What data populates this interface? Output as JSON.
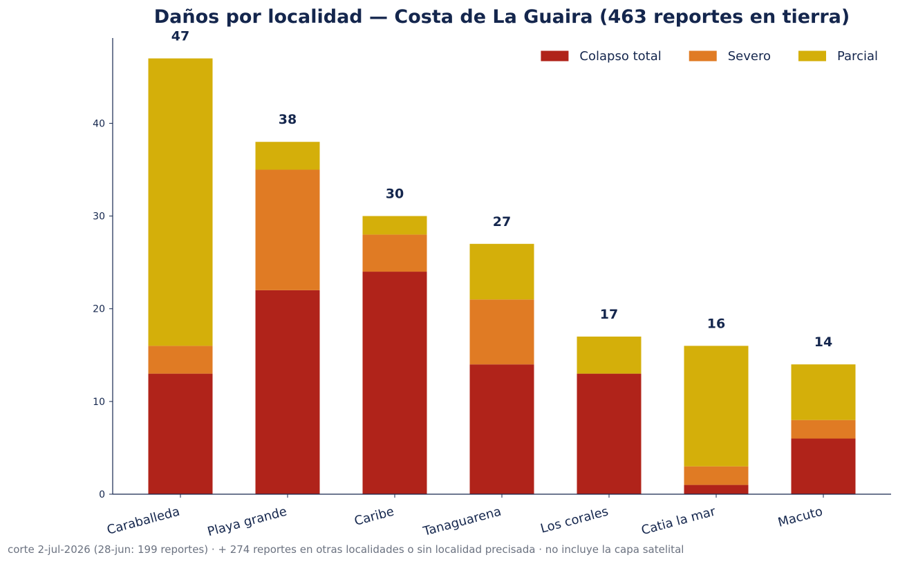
{
  "chart_data": {
    "type": "bar",
    "stacked": true,
    "title": "Daños por localidad — Costa de La Guaira (463 reportes en tierra)",
    "xlabel": "",
    "ylabel": "",
    "categories": [
      "Caraballeda",
      "Playa grande",
      "Caribe",
      "Tanaguarena",
      "Los corales",
      "Catia la mar",
      "Macuto"
    ],
    "series": [
      {
        "name": "Colapso total",
        "color": "#b0231a",
        "values": [
          13,
          22,
          24,
          14,
          13,
          1,
          6
        ]
      },
      {
        "name": "Severo",
        "color": "#e07b24",
        "values": [
          3,
          13,
          4,
          7,
          0,
          2,
          2
        ]
      },
      {
        "name": "Parcial",
        "color": "#d4af0a",
        "values": [
          31,
          3,
          2,
          6,
          4,
          13,
          6
        ]
      }
    ],
    "totals": [
      "47",
      "38",
      "30",
      "27",
      "17",
      "16",
      "14"
    ],
    "ylim": [
      0,
      49.2
    ],
    "yticks": [
      0,
      10,
      20,
      30,
      40
    ],
    "ytick_labels": [
      "0",
      "10",
      "20",
      "30",
      "40"
    ],
    "grid": false,
    "legend_position": "top-right",
    "text_color": "#14264d"
  },
  "footnote": "corte 2-jul-2026 (28-jun: 199 reportes) · + 274 reportes en otras localidades o sin localidad precisada · no incluye la capa satelital"
}
